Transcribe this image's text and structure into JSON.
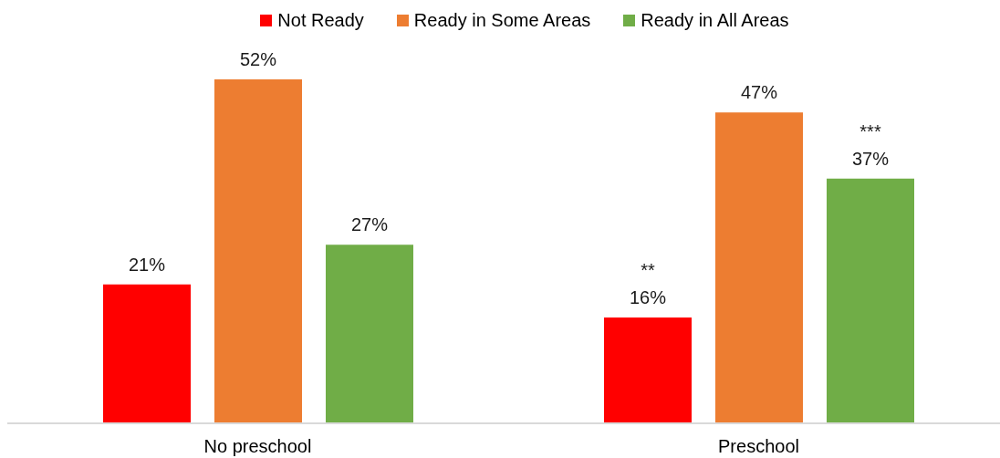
{
  "chart_data": {
    "type": "bar",
    "categories": [
      "No preschool",
      "Preschool"
    ],
    "series": [
      {
        "name": "Not Ready",
        "color": "#ff0000",
        "values": [
          21,
          16
        ],
        "value_labels": [
          "21%",
          "**\n16%"
        ]
      },
      {
        "name": "Ready in Some Areas",
        "color": "#ed7d31",
        "values": [
          52,
          47
        ],
        "value_labels": [
          "52%",
          "47%"
        ]
      },
      {
        "name": "Ready in All Areas",
        "color": "#70ad47",
        "values": [
          27,
          37
        ],
        "value_labels": [
          "27%",
          "***\n37%"
        ]
      }
    ],
    "legend": "top",
    "grid": false,
    "tick_labels": "x"
  }
}
